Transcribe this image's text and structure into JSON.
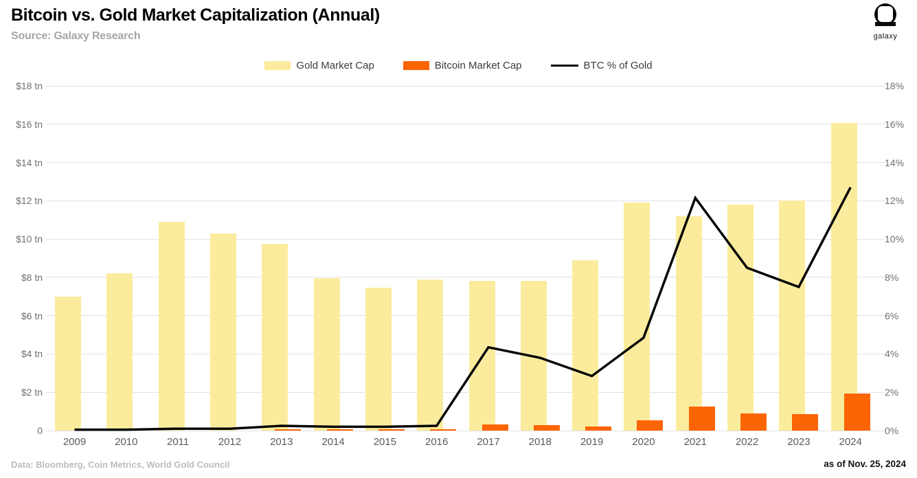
{
  "header": {
    "title": "Bitcoin vs. Gold Market Capitalization (Annual)",
    "subtitle": "Source: Galaxy Research",
    "logo_text": "galaxy"
  },
  "legend": {
    "items": [
      {
        "label": "Gold Market Cap",
        "color": "#fbec9d",
        "swatch": "rect"
      },
      {
        "label": "Bitcoin Market Cap",
        "color": "#fd6503",
        "swatch": "rect"
      },
      {
        "label": "BTC % of Gold",
        "color": "#050505",
        "swatch": "line"
      }
    ]
  },
  "footer": {
    "left": "Data: Bloomberg, Coin Metrics, World Gold Council",
    "right": "as of Nov. 25, 2024"
  },
  "chart_data": {
    "type": "bar",
    "title": "Bitcoin vs. Gold Market Capitalization (Annual)",
    "categories": [
      "2009",
      "2010",
      "2011",
      "2012",
      "2013",
      "2014",
      "2015",
      "2016",
      "2017",
      "2018",
      "2019",
      "2020",
      "2021",
      "2022",
      "2023",
      "2024"
    ],
    "series": [
      {
        "name": "Gold Market Cap",
        "type": "bar",
        "axis": "left",
        "unit": "$ tn",
        "color": "#fbec9d",
        "values": [
          7.0,
          8.2,
          10.9,
          10.3,
          9.75,
          7.95,
          7.45,
          7.9,
          7.8,
          7.8,
          8.9,
          11.9,
          11.2,
          11.8,
          12.0,
          16.05
        ]
      },
      {
        "name": "Bitcoin Market Cap",
        "type": "bar",
        "axis": "left",
        "unit": "$ tn",
        "color": "#fd6503",
        "values": [
          0,
          0,
          0,
          0,
          0.02,
          0.02,
          0.02,
          0.03,
          0.32,
          0.28,
          0.2,
          0.55,
          1.25,
          0.9,
          0.86,
          1.94
        ]
      },
      {
        "name": "BTC % of Gold",
        "type": "line",
        "axis": "right",
        "unit": "%",
        "color": "#050505",
        "values": [
          0.05,
          0.05,
          0.1,
          0.1,
          0.25,
          0.2,
          0.2,
          0.25,
          4.35,
          3.8,
          2.85,
          4.85,
          12.15,
          8.5,
          7.5,
          12.7
        ]
      }
    ],
    "left_axis": {
      "label": "",
      "min": 0,
      "max": 18,
      "step": 2,
      "ticks": [
        "0",
        "$2 tn",
        "$4 tn",
        "$6 tn",
        "$8 tn",
        "$10 tn",
        "$12 tn",
        "$14 tn",
        "$16 tn",
        "$18 tn"
      ]
    },
    "right_axis": {
      "label": "",
      "min": 0,
      "max": 18,
      "step": 2,
      "ticks": [
        "0%",
        "2%",
        "4%",
        "6%",
        "8%",
        "10%",
        "12%",
        "14%",
        "16%",
        "18%"
      ]
    },
    "grid": "horizontal",
    "legend_position": "top-center"
  }
}
